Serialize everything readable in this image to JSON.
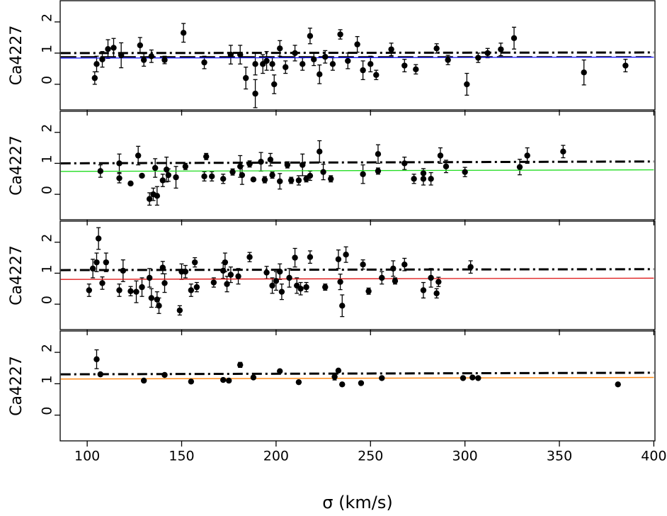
{
  "chart_data": [
    {
      "type": "scatter",
      "ylabel": "Ca4227",
      "xlim": [
        85.7,
        400.6
      ],
      "ylim": [
        -0.82,
        2.68
      ],
      "yticks": [
        0,
        1,
        2
      ],
      "xticks": [
        100,
        150,
        200,
        250,
        300,
        350,
        400
      ],
      "show_xtick_labels": false,
      "lines": [
        {
          "color": "#000000",
          "dash": "14 5 3 5",
          "width": 3,
          "x": [
            86,
            400
          ],
          "values": [
            1.0,
            1.02
          ]
        },
        {
          "color": "#000000",
          "dash": "22 6",
          "width": 2,
          "x": [
            86,
            400
          ],
          "values": [
            0.88,
            0.88
          ]
        },
        {
          "color": "#1a1aff",
          "dash": "none",
          "width": 1.3,
          "x": [
            86,
            400
          ],
          "values": [
            0.84,
            0.87
          ]
        }
      ],
      "series": [
        {
          "color": "#000000",
          "x": [
            104,
            105,
            108,
            111,
            114,
            118,
            128,
            130,
            134,
            141,
            151,
            162,
            176,
            181,
            184,
            189,
            189,
            193,
            195,
            198,
            199,
            202,
            205,
            210,
            214,
            218,
            220,
            223,
            226,
            230,
            234,
            238,
            243,
            246,
            250,
            253,
            261,
            268,
            274,
            285,
            291,
            301,
            307,
            312,
            319,
            326,
            363,
            385
          ],
          "values": [
            0.2,
            0.65,
            0.8,
            1.13,
            1.17,
            0.93,
            1.25,
            0.78,
            0.9,
            0.78,
            1.65,
            0.7,
            0.95,
            0.95,
            0.2,
            -0.3,
            0.65,
            0.65,
            0.75,
            0.65,
            0.0,
            1.15,
            0.55,
            1.0,
            0.65,
            1.55,
            0.8,
            0.32,
            0.88,
            0.65,
            1.6,
            0.75,
            1.28,
            0.45,
            0.65,
            0.3,
            1.12,
            0.6,
            0.48,
            1.15,
            0.78,
            0.0,
            0.85,
            1.0,
            1.12,
            1.48,
            0.38,
            0.6
          ],
          "errors": [
            0.2,
            0.25,
            0.25,
            0.3,
            0.3,
            0.4,
            0.25,
            0.2,
            0.2,
            0.12,
            0.3,
            0.2,
            0.3,
            0.3,
            0.35,
            0.45,
            0.35,
            0.3,
            0.3,
            0.2,
            0.3,
            0.25,
            0.2,
            0.25,
            0.2,
            0.25,
            0.2,
            0.3,
            0.2,
            0.2,
            0.15,
            0.25,
            0.25,
            0.3,
            0.25,
            0.15,
            0.2,
            0.2,
            0.15,
            0.15,
            0.15,
            0.35,
            0.15,
            0.15,
            0.2,
            0.35,
            0.4,
            0.2
          ]
        }
      ]
    },
    {
      "type": "scatter",
      "ylabel": "Ca4227",
      "xlim": [
        85.7,
        400.6
      ],
      "ylim": [
        -0.82,
        2.68
      ],
      "yticks": [
        0,
        1,
        2
      ],
      "xticks": [
        100,
        150,
        200,
        250,
        300,
        350,
        400
      ],
      "show_xtick_labels": false,
      "lines": [
        {
          "color": "#000000",
          "dash": "14 5 3 5",
          "width": 3,
          "x": [
            86,
            400
          ],
          "values": [
            1.0,
            1.06
          ]
        },
        {
          "color": "#22dd22",
          "dash": "none",
          "width": 1.3,
          "x": [
            86,
            400
          ],
          "values": [
            0.74,
            0.79
          ]
        }
      ],
      "series": [
        {
          "color": "#000000",
          "x": [
            107,
            117,
            117,
            123,
            127,
            129,
            133,
            135,
            136,
            137,
            140,
            142,
            143,
            147,
            152,
            162,
            163,
            166,
            172,
            177,
            181,
            182,
            186,
            188,
            192,
            194,
            197,
            198,
            202,
            206,
            208,
            212,
            214,
            216,
            218,
            223,
            225,
            229,
            246,
            254,
            254,
            268,
            273,
            278,
            278,
            282,
            287,
            290,
            300,
            329,
            333,
            352
          ],
          "values": [
            0.75,
            0.52,
            1.0,
            0.35,
            1.25,
            0.6,
            -0.15,
            0.0,
            0.85,
            -0.05,
            0.45,
            0.8,
            0.62,
            0.55,
            0.9,
            0.58,
            1.22,
            0.58,
            0.5,
            0.72,
            0.9,
            0.62,
            0.98,
            0.48,
            1.05,
            0.47,
            1.12,
            0.62,
            0.42,
            0.95,
            0.45,
            0.45,
            0.95,
            0.5,
            0.6,
            1.38,
            0.72,
            0.5,
            0.65,
            1.3,
            0.75,
            1.0,
            0.5,
            0.5,
            0.68,
            0.5,
            1.25,
            0.9,
            0.72,
            0.88,
            1.25,
            1.38
          ],
          "errors": [
            0.2,
            0.15,
            0.3,
            0.05,
            0.3,
            0.05,
            0.2,
            0.2,
            0.3,
            0.3,
            0.2,
            0.4,
            0.2,
            0.35,
            0.1,
            0.15,
            0.1,
            0.15,
            0.15,
            0.1,
            0.35,
            0.3,
            0.1,
            0.05,
            0.3,
            0.1,
            0.2,
            0.1,
            0.25,
            0.1,
            0.1,
            0.15,
            0.35,
            0.1,
            0.15,
            0.35,
            0.25,
            0.1,
            0.3,
            0.3,
            0.1,
            0.2,
            0.15,
            0.2,
            0.15,
            0.2,
            0.25,
            0.2,
            0.15,
            0.25,
            0.25,
            0.2
          ]
        }
      ]
    },
    {
      "type": "scatter",
      "ylabel": "Ca4227",
      "xlim": [
        85.7,
        400.6
      ],
      "ylim": [
        -0.82,
        2.68
      ],
      "yticks": [
        0,
        1,
        2
      ],
      "xticks": [
        100,
        150,
        200,
        250,
        300,
        350,
        400
      ],
      "show_xtick_labels": false,
      "lines": [
        {
          "color": "#000000",
          "dash": "14 5 3 5",
          "width": 3,
          "x": [
            86,
            400
          ],
          "values": [
            1.1,
            1.13
          ]
        },
        {
          "color": "#dd1111",
          "dash": "none",
          "width": 1.3,
          "x": [
            86,
            400
          ],
          "values": [
            0.8,
            0.84
          ]
        }
      ],
      "series": [
        {
          "color": "#000000",
          "x": [
            101,
            103,
            105,
            106,
            108,
            110,
            117,
            119,
            123,
            126,
            129,
            133,
            134,
            137,
            138,
            140,
            141,
            149,
            150,
            152,
            155,
            157,
            158,
            167,
            172,
            173,
            174,
            176,
            180,
            186,
            195,
            198,
            200,
            202,
            203,
            207,
            210,
            211,
            213,
            216,
            218,
            226,
            233,
            234,
            235,
            237,
            246,
            249,
            256,
            262,
            263,
            268,
            278,
            282,
            285,
            286,
            303
          ],
          "values": [
            0.45,
            1.15,
            1.35,
            2.12,
            0.68,
            1.35,
            0.45,
            1.08,
            0.42,
            0.4,
            0.55,
            0.85,
            0.2,
            0.15,
            -0.05,
            1.18,
            0.68,
            -0.2,
            1.05,
            1.05,
            0.45,
            1.35,
            0.55,
            0.7,
            1.08,
            1.35,
            0.65,
            0.95,
            0.9,
            1.52,
            1.02,
            0.6,
            0.75,
            1.05,
            0.4,
            0.85,
            1.5,
            0.6,
            0.5,
            0.55,
            1.52,
            0.55,
            1.45,
            0.72,
            -0.05,
            1.6,
            1.28,
            0.42,
            0.85,
            1.15,
            0.75,
            1.28,
            0.45,
            0.85,
            0.35,
            0.72,
            1.2
          ],
          "errors": [
            0.2,
            0.3,
            0.3,
            0.35,
            0.2,
            0.3,
            0.2,
            0.35,
            0.15,
            0.35,
            0.3,
            0.3,
            0.3,
            0.25,
            0.25,
            0.2,
            0.3,
            0.15,
            0.25,
            0.2,
            0.2,
            0.15,
            0.15,
            0.15,
            0.25,
            0.3,
            0.25,
            0.25,
            0.25,
            0.15,
            0.2,
            0.25,
            0.3,
            0.25,
            0.25,
            0.3,
            0.3,
            0.25,
            0.2,
            0.15,
            0.2,
            0.1,
            0.3,
            0.25,
            0.35,
            0.25,
            0.15,
            0.1,
            0.2,
            0.25,
            0.1,
            0.2,
            0.25,
            0.3,
            0.15,
            0.15,
            0.2
          ]
        }
      ]
    },
    {
      "type": "scatter",
      "ylabel": "Ca4227",
      "xlabel": "σ  (km/s)",
      "xlim": [
        85.7,
        400.6
      ],
      "ylim": [
        -0.82,
        2.68
      ],
      "yticks": [
        0,
        1,
        2
      ],
      "xticks": [
        100,
        150,
        200,
        250,
        300,
        350,
        400
      ],
      "show_xtick_labels": true,
      "lines": [
        {
          "color": "#000000",
          "dash": "14 5 3 5",
          "width": 3,
          "x": [
            86,
            400
          ],
          "values": [
            1.3,
            1.35
          ]
        },
        {
          "color": "#ff8c1a",
          "dash": "none",
          "width": 1.5,
          "x": [
            86,
            400
          ],
          "values": [
            1.15,
            1.2
          ]
        }
      ],
      "series": [
        {
          "color": "#000000",
          "x": [
            105,
            107,
            130,
            141,
            155,
            172,
            175,
            181,
            188,
            202,
            212,
            231,
            233,
            235,
            245,
            256,
            299,
            304,
            307,
            381
          ],
          "values": [
            1.78,
            1.3,
            1.1,
            1.28,
            1.07,
            1.12,
            1.1,
            1.6,
            1.2,
            1.4,
            1.05,
            1.22,
            1.42,
            0.98,
            1.02,
            1.18,
            1.18,
            1.2,
            1.18,
            0.98
          ],
          "errors": [
            0.3,
            0.05,
            0.05,
            0.05,
            0.05,
            0.05,
            0.05,
            0.08,
            0.05,
            0.05,
            0.05,
            0.1,
            0.05,
            0.05,
            0.05,
            0.05,
            0.05,
            0.05,
            0.05,
            0.04
          ]
        }
      ]
    }
  ]
}
